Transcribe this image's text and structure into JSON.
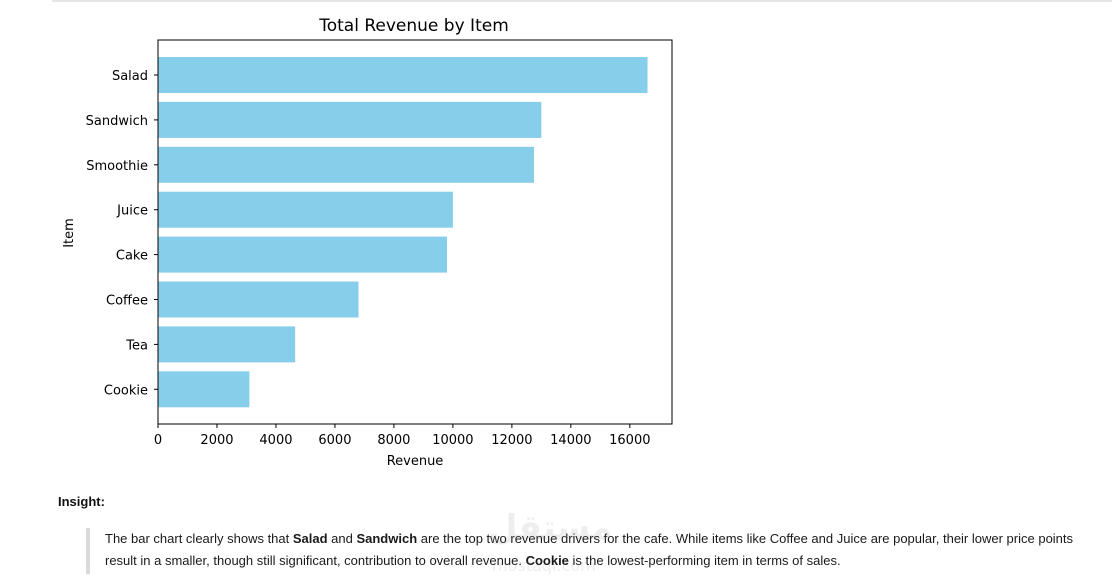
{
  "chart_data": {
    "type": "bar",
    "orientation": "horizontal",
    "title": "Total Revenue by Item",
    "xlabel": "Revenue",
    "ylabel": "Item",
    "categories": [
      "Salad",
      "Sandwich",
      "Smoothie",
      "Juice",
      "Cake",
      "Coffee",
      "Tea",
      "Cookie"
    ],
    "values": [
      16600,
      13000,
      12750,
      10000,
      9800,
      6800,
      4650,
      3100
    ],
    "xlim": [
      0,
      17430
    ],
    "xticks": [
      0,
      2000,
      4000,
      6000,
      8000,
      10000,
      12000,
      14000,
      16000
    ],
    "bar_color": "#87ceeb",
    "grid": false
  },
  "insight": {
    "heading": "Insight:",
    "p1": "The bar chart clearly shows that ",
    "b1": "Salad",
    "p2": " and ",
    "b2": "Sandwich",
    "p3": " are the top two revenue drivers for the cafe. While items like Coffee and Juice are popular, their lower price points result in a smaller, though still significant, contribution to overall revenue. ",
    "b3": "Cookie",
    "p4": " is the lowest-performing item in terms of sales."
  },
  "watermark": {
    "text": "مستقل",
    "sub": "mostaql.com"
  }
}
